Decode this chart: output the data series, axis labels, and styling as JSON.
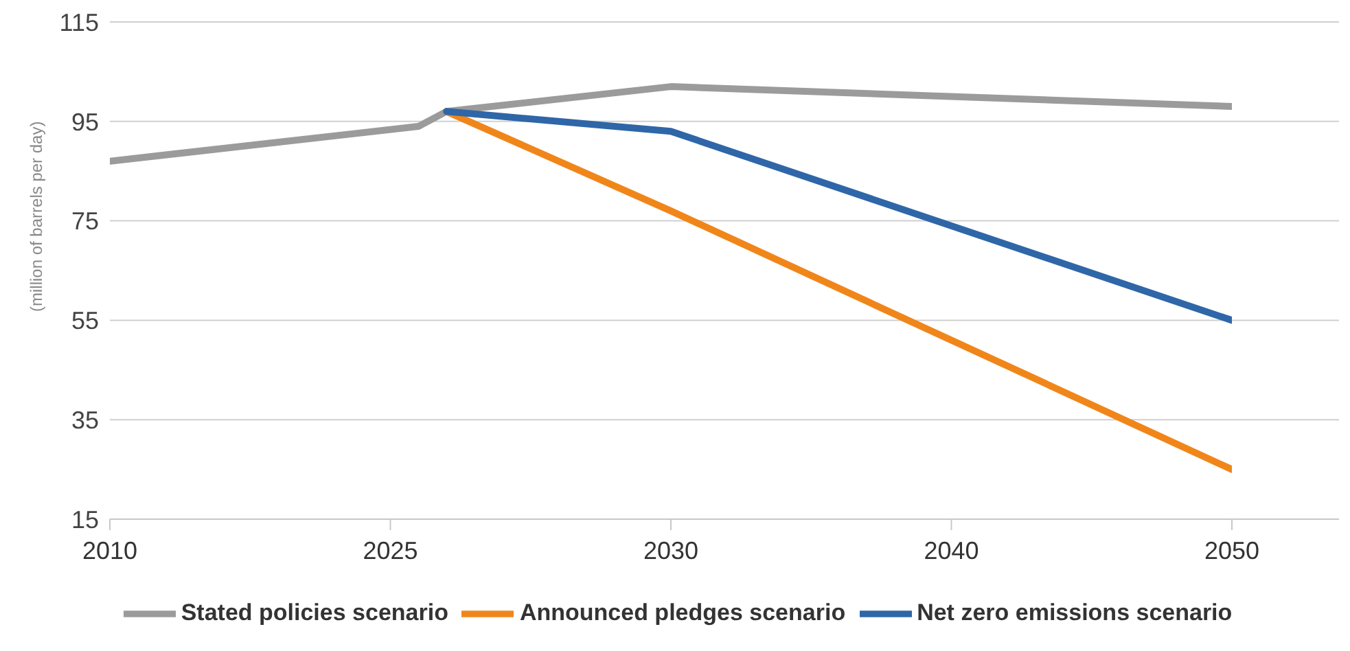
{
  "chart_data": {
    "type": "line",
    "ylabel": "(million of barrels per day)",
    "categories": [
      "2010",
      null,
      null,
      null,
      null,
      null,
      null,
      null,
      null,
      null,
      "2025",
      null,
      null,
      null,
      null,
      null,
      null,
      null,
      null,
      null,
      "2030",
      null,
      null,
      null,
      null,
      null,
      null,
      null,
      null,
      null,
      "2040",
      null,
      null,
      null,
      null,
      null,
      null,
      null,
      null,
      null,
      "2050"
    ],
    "series": [
      {
        "name": "Stated policies scenario",
        "color": "#9b9b9b",
        "values": [
          87,
          null,
          null,
          null,
          null,
          null,
          null,
          null,
          null,
          null,
          null,
          94,
          97,
          null,
          null,
          null,
          null,
          null,
          null,
          null,
          102,
          null,
          null,
          null,
          null,
          null,
          null,
          null,
          null,
          null,
          null,
          null,
          null,
          null,
          null,
          null,
          null,
          null,
          null,
          null,
          98
        ]
      },
      {
        "name": "Announced pledges scenario",
        "color": "#f0861a",
        "values": [
          null,
          null,
          null,
          null,
          null,
          null,
          null,
          null,
          null,
          null,
          null,
          null,
          97,
          null,
          null,
          null,
          null,
          null,
          null,
          null,
          77,
          null,
          null,
          null,
          null,
          null,
          null,
          null,
          null,
          null,
          null,
          null,
          null,
          null,
          null,
          null,
          null,
          null,
          null,
          null,
          25
        ]
      },
      {
        "name": "Net zero emissions scenario",
        "color": "#2f66a8",
        "values": [
          null,
          null,
          null,
          null,
          null,
          null,
          null,
          null,
          null,
          null,
          null,
          null,
          97,
          null,
          null,
          null,
          null,
          null,
          null,
          null,
          93,
          null,
          null,
          null,
          null,
          null,
          null,
          null,
          null,
          null,
          null,
          null,
          null,
          null,
          null,
          null,
          null,
          null,
          null,
          null,
          55
        ]
      }
    ],
    "ylim": [
      15,
      115
    ],
    "yticks": [
      15,
      35,
      55,
      75,
      95,
      115
    ],
    "grid": "y",
    "legend": "bottom",
    "marker": "none",
    "line_style": "solid"
  }
}
